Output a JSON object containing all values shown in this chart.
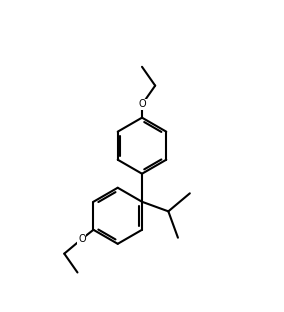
{
  "background_color": "#ffffff",
  "line_color": "#000000",
  "line_width": 1.5,
  "fig_width": 2.84,
  "fig_height": 3.12,
  "dpi": 100
}
